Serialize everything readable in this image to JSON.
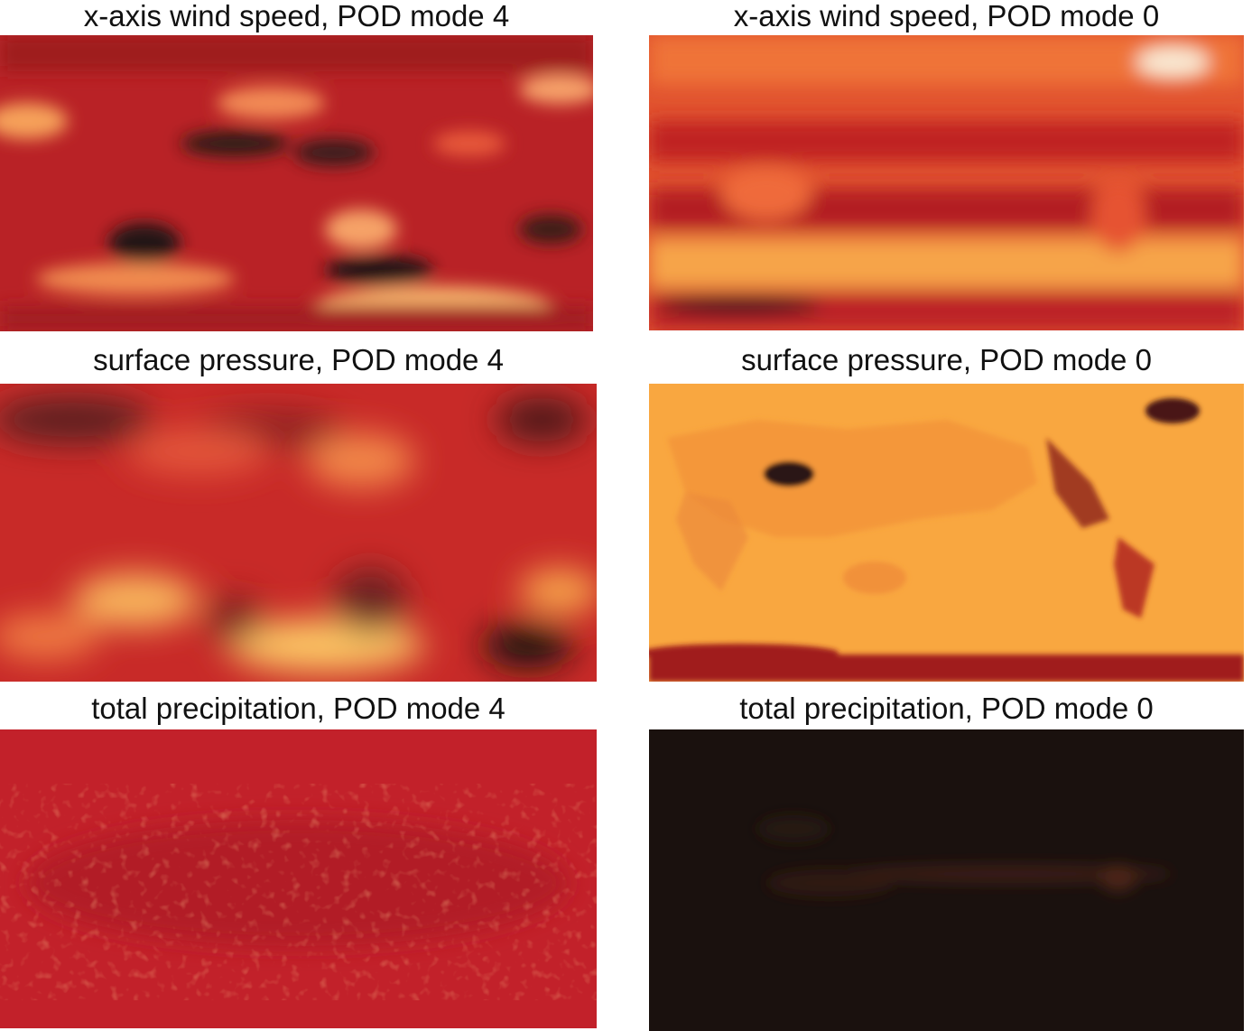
{
  "panels": [
    {
      "id": "wind-mode-4",
      "title": "x-axis wind speed, POD mode 4"
    },
    {
      "id": "wind-mode-0",
      "title": "x-axis wind speed, POD mode 0"
    },
    {
      "id": "pressure-mode-4",
      "title": "surface pressure, POD mode 4"
    },
    {
      "id": "pressure-mode-0",
      "title": "surface pressure, POD mode 0"
    },
    {
      "id": "precip-mode-4",
      "title": "total precipitation, POD mode 4"
    },
    {
      "id": "precip-mode-0",
      "title": "total precipitation, POD mode 0"
    }
  ],
  "colors": {
    "dark": "#1a0e0c",
    "deep_red": "#9a1c1c",
    "red": "#c8242a",
    "orange": "#ee6a2a",
    "amber": "#f7a543",
    "pale": "#fbd27a"
  }
}
